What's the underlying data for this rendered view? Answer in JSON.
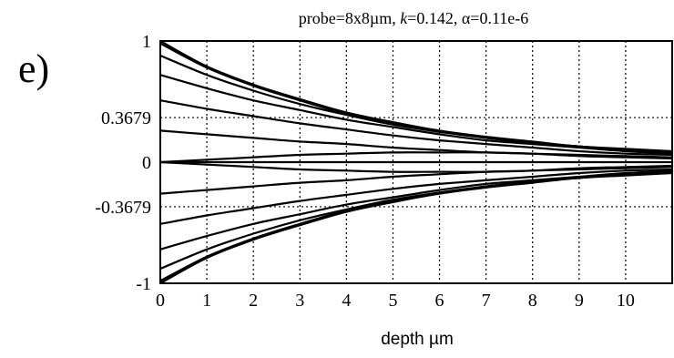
{
  "chart_data": {
    "type": "line",
    "panel_label": "e)",
    "title": "probe=8x8µm, k=0.142, α=0.11e-6",
    "title_parts": [
      {
        "text": "probe=8x8µm, ",
        "italic": false
      },
      {
        "text": "k",
        "italic": true
      },
      {
        "text": "=0.142, α=0.11e-6",
        "italic": false
      }
    ],
    "xlabel": "depth µm",
    "ylabel": "",
    "xlim": [
      0,
      11
    ],
    "ylim": [
      -1,
      1
    ],
    "x_ticks": [
      0,
      1,
      2,
      3,
      4,
      5,
      6,
      7,
      8,
      9,
      10
    ],
    "x_tick_labels": [
      "0",
      "1",
      "2",
      "3",
      "4",
      "5",
      "6",
      "7",
      "8",
      "9",
      "10"
    ],
    "y_ticks": [
      -1,
      -0.3679,
      0,
      0.3679,
      1
    ],
    "y_tick_labels": [
      "-1",
      "-0.3679",
      "0",
      "0.3679",
      "1"
    ],
    "grid": true,
    "grid_style": "dotted",
    "x": [
      0,
      1,
      2,
      3,
      4,
      5,
      6,
      7,
      8,
      9,
      10,
      11
    ],
    "series": [
      {
        "values": [
          1.0,
          0.79,
          0.64,
          0.52,
          0.41,
          0.33,
          0.26,
          0.21,
          0.17,
          0.13,
          0.11,
          0.09
        ]
      },
      {
        "values": [
          0.98,
          0.78,
          0.63,
          0.51,
          0.4,
          0.32,
          0.26,
          0.2,
          0.16,
          0.13,
          0.1,
          0.08
        ]
      },
      {
        "values": [
          0.88,
          0.72,
          0.59,
          0.48,
          0.39,
          0.31,
          0.25,
          0.2,
          0.16,
          0.13,
          0.1,
          0.08
        ]
      },
      {
        "values": [
          0.72,
          0.61,
          0.51,
          0.43,
          0.35,
          0.29,
          0.23,
          0.18,
          0.15,
          0.12,
          0.09,
          0.07
        ]
      },
      {
        "values": [
          0.51,
          0.44,
          0.38,
          0.32,
          0.27,
          0.22,
          0.18,
          0.15,
          0.12,
          0.09,
          0.07,
          0.06
        ]
      },
      {
        "values": [
          0.26,
          0.23,
          0.2,
          0.17,
          0.15,
          0.12,
          0.1,
          0.08,
          0.07,
          0.05,
          0.04,
          0.03
        ]
      },
      {
        "values": [
          0.0,
          0.0,
          0.0,
          0.0,
          0.0,
          0.0,
          0.0,
          0.0,
          0.0,
          0.0,
          0.0,
          0.0
        ]
      },
      {
        "values": [
          0.0,
          0.02,
          0.04,
          0.06,
          0.07,
          0.08,
          0.08,
          0.08,
          0.07,
          0.06,
          0.05,
          0.04
        ]
      },
      {
        "values": [
          0.0,
          -0.02,
          -0.04,
          -0.06,
          -0.07,
          -0.08,
          -0.08,
          -0.08,
          -0.07,
          -0.06,
          -0.05,
          -0.04
        ]
      },
      {
        "values": [
          -0.26,
          -0.23,
          -0.2,
          -0.17,
          -0.15,
          -0.12,
          -0.1,
          -0.08,
          -0.07,
          -0.05,
          -0.04,
          -0.03
        ]
      },
      {
        "values": [
          -0.51,
          -0.44,
          -0.38,
          -0.32,
          -0.27,
          -0.22,
          -0.18,
          -0.15,
          -0.12,
          -0.09,
          -0.07,
          -0.06
        ]
      },
      {
        "values": [
          -0.72,
          -0.61,
          -0.51,
          -0.43,
          -0.35,
          -0.29,
          -0.23,
          -0.18,
          -0.15,
          -0.12,
          -0.09,
          -0.07
        ]
      },
      {
        "values": [
          -0.88,
          -0.72,
          -0.59,
          -0.48,
          -0.39,
          -0.31,
          -0.25,
          -0.2,
          -0.16,
          -0.13,
          -0.1,
          -0.08
        ]
      },
      {
        "values": [
          -0.98,
          -0.78,
          -0.63,
          -0.51,
          -0.4,
          -0.32,
          -0.26,
          -0.2,
          -0.16,
          -0.13,
          -0.1,
          -0.08
        ]
      },
      {
        "values": [
          -1.0,
          -0.79,
          -0.64,
          -0.52,
          -0.41,
          -0.33,
          -0.26,
          -0.21,
          -0.17,
          -0.13,
          -0.11,
          -0.09
        ]
      }
    ],
    "line_color": "#000000"
  }
}
